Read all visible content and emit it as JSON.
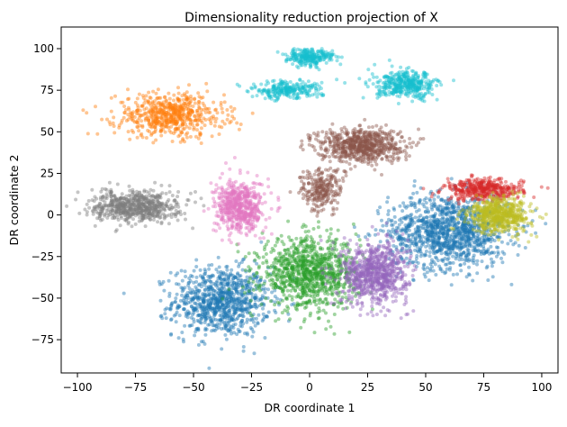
{
  "chart_data": {
    "type": "scatter",
    "title": "Dimensionality reduction projection of X",
    "xlabel": "DR coordinate 1",
    "ylabel": "DR coordinate 2",
    "xlim": [
      -107,
      107
    ],
    "ylim": [
      -95,
      113
    ],
    "xticks": [
      -100,
      -75,
      -50,
      -25,
      0,
      25,
      50,
      75,
      100
    ],
    "yticks": [
      -75,
      -50,
      -25,
      0,
      25,
      50,
      75,
      100
    ],
    "grid": false,
    "legend": "none",
    "marker_alpha": 0.45,
    "clusters": [
      {
        "id": "blue-left",
        "color": "#1f77b4",
        "center": [
          -38,
          -52
        ],
        "spread": [
          16,
          16
        ],
        "count": 900
      },
      {
        "id": "blue-right",
        "color": "#1f77b4",
        "center": [
          60,
          -10
        ],
        "spread": [
          20,
          17
        ],
        "count": 1200
      },
      {
        "id": "orange-arc",
        "color": "#ff7f0e",
        "center": [
          -60,
          60
        ],
        "spread": [
          18,
          10
        ],
        "count": 600
      },
      {
        "id": "green",
        "color": "#2ca02c",
        "center": [
          0,
          -35
        ],
        "spread": [
          16,
          16
        ],
        "count": 1000
      },
      {
        "id": "red",
        "color": "#d62728",
        "center": [
          75,
          15
        ],
        "spread": [
          13,
          5
        ],
        "count": 400
      },
      {
        "id": "purple",
        "color": "#9467bd",
        "center": [
          28,
          -35
        ],
        "spread": [
          11,
          14
        ],
        "count": 800
      },
      {
        "id": "brown-top",
        "color": "#8c564b",
        "center": [
          22,
          42
        ],
        "spread": [
          14,
          8
        ],
        "count": 700
      },
      {
        "id": "brown-bottom",
        "color": "#8c564b",
        "center": [
          5,
          15
        ],
        "spread": [
          7,
          10
        ],
        "count": 250
      },
      {
        "id": "pink",
        "color": "#e377c2",
        "center": [
          -30,
          5
        ],
        "spread": [
          8,
          12
        ],
        "count": 600
      },
      {
        "id": "gray",
        "color": "#7f7f7f",
        "center": [
          -75,
          5
        ],
        "spread": [
          14,
          7
        ],
        "count": 650
      },
      {
        "id": "olive",
        "color": "#bcbd22",
        "center": [
          82,
          0
        ],
        "spread": [
          10,
          8
        ],
        "count": 600
      },
      {
        "id": "cyan-top",
        "color": "#17becf",
        "center": [
          0,
          95
        ],
        "spread": [
          8,
          4
        ],
        "count": 250
      },
      {
        "id": "cyan-mid",
        "color": "#17becf",
        "center": [
          -10,
          75
        ],
        "spread": [
          12,
          4
        ],
        "count": 250
      },
      {
        "id": "cyan-right",
        "color": "#17becf",
        "center": [
          42,
          78
        ],
        "spread": [
          10,
          6
        ],
        "count": 400
      }
    ]
  }
}
